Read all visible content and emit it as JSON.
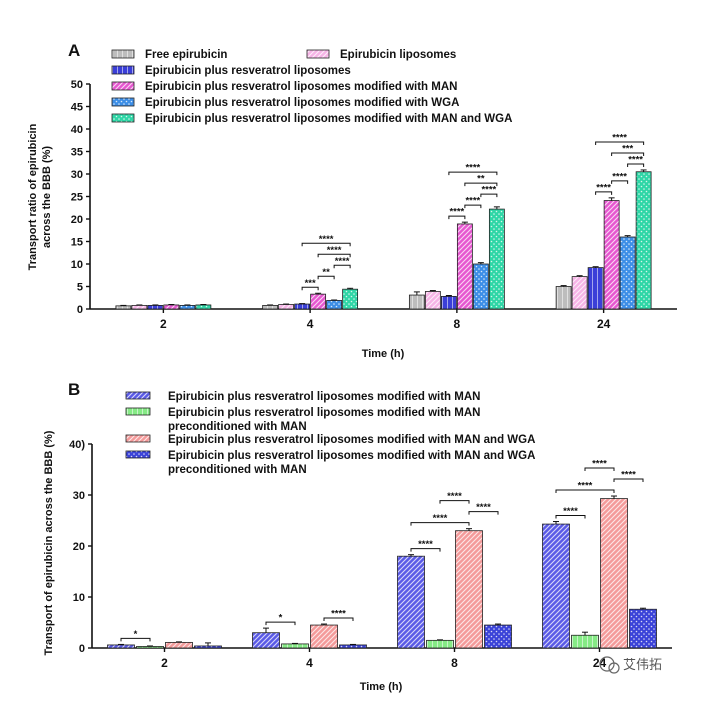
{
  "watermark": "艾伟拓",
  "chart_data": [
    {
      "panel_label": "A",
      "type": "bar",
      "xlabel": "Time (h)",
      "ylabel_lines": [
        "Transport ratio of epirubicin",
        "across the BBB (%)"
      ],
      "ylim": [
        0,
        50
      ],
      "yticks": [
        0,
        5,
        10,
        15,
        20,
        25,
        30,
        35,
        40,
        45,
        50
      ],
      "categories": [
        "2",
        "4",
        "8",
        "24"
      ],
      "series": [
        {
          "name": "Free epirubicin",
          "color": "#bdbdbd",
          "pattern": "vlines",
          "values": [
            0.7,
            0.8,
            3.1,
            5.0
          ],
          "errors": [
            0.1,
            0.1,
            0.7,
            0.2
          ]
        },
        {
          "name": "Epirubicin liposomes",
          "color": "#f6b4e6",
          "pattern": "diag",
          "values": [
            0.8,
            1.0,
            3.9,
            7.2
          ],
          "errors": [
            0.1,
            0.1,
            0.2,
            0.2
          ]
        },
        {
          "name": "Epirubicin plus resveratrol liposomes",
          "color": "#3b3fd8",
          "pattern": "vlines",
          "values": [
            0.8,
            1.1,
            2.8,
            9.2
          ],
          "errors": [
            0.1,
            0.1,
            0.2,
            0.2
          ]
        },
        {
          "name": "Epirubicin plus resveratrol liposomes modified with  MAN",
          "color": "#e657d0",
          "pattern": "diag",
          "values": [
            0.9,
            3.3,
            18.9,
            24.1
          ],
          "errors": [
            0.1,
            0.2,
            0.4,
            0.6
          ]
        },
        {
          "name": "Epirubicin plus resveratrol liposomes modified with  WGA",
          "color": "#3d8ee6",
          "pattern": "dots",
          "values": [
            0.8,
            1.9,
            10.0,
            16.0
          ],
          "errors": [
            0.1,
            0.1,
            0.3,
            0.3
          ]
        },
        {
          "name": "Epirubicin plus resveratrol liposomes modified with  MAN and WGA",
          "color": "#2fd6a6",
          "pattern": "dots",
          "values": [
            0.9,
            4.4,
            22.2,
            30.5
          ],
          "errors": [
            0.1,
            0.2,
            0.5,
            0.4
          ]
        }
      ],
      "significance": [
        {
          "cat": 1,
          "from": 2,
          "to": 3,
          "label": "***"
        },
        {
          "cat": 1,
          "from": 3,
          "to": 4,
          "label": "**"
        },
        {
          "cat": 1,
          "from": 4,
          "to": 5,
          "label": "****"
        },
        {
          "cat": 1,
          "from": 3,
          "to": 5,
          "label": "****"
        },
        {
          "cat": 1,
          "from": 2,
          "to": 5,
          "label": "****"
        },
        {
          "cat": 2,
          "from": 2,
          "to": 3,
          "label": "****"
        },
        {
          "cat": 2,
          "from": 3,
          "to": 4,
          "label": "****"
        },
        {
          "cat": 2,
          "from": 4,
          "to": 5,
          "label": "****"
        },
        {
          "cat": 2,
          "from": 3,
          "to": 5,
          "label": "**"
        },
        {
          "cat": 2,
          "from": 2,
          "to": 5,
          "label": "****"
        },
        {
          "cat": 3,
          "from": 2,
          "to": 3,
          "label": "****"
        },
        {
          "cat": 3,
          "from": 3,
          "to": 4,
          "label": "****"
        },
        {
          "cat": 3,
          "from": 4,
          "to": 5,
          "label": "****"
        },
        {
          "cat": 3,
          "from": 3,
          "to": 5,
          "label": "***"
        },
        {
          "cat": 3,
          "from": 2,
          "to": 5,
          "label": "****"
        }
      ]
    },
    {
      "panel_label": "B",
      "type": "bar",
      "xlabel": "Time (h)",
      "ylabel_lines": [
        "Transport of epirubicin across the BBB (%)"
      ],
      "ylim": [
        0,
        40
      ],
      "yticks": [
        0,
        10,
        20,
        30,
        40
      ],
      "ytick_labels": [
        "0",
        "10",
        "20",
        "30",
        "40)"
      ],
      "categories": [
        "2",
        "4",
        "8",
        "24"
      ],
      "series": [
        {
          "name_lines": [
            "Epirubicin plus resveratrol liposomes modified with  MAN"
          ],
          "color": "#5a5ae6",
          "pattern": "diag",
          "values": [
            0.6,
            3.0,
            18.0,
            24.3
          ],
          "errors": [
            0.1,
            0.9,
            0.3,
            0.5
          ]
        },
        {
          "name_lines": [
            "Epirubicin plus resveratrol liposomes modified with  MAN",
            "preconditioned with MAN"
          ],
          "color": "#86ea86",
          "pattern": "vlines",
          "values": [
            0.3,
            0.8,
            1.5,
            2.5
          ],
          "errors": [
            0.1,
            0.1,
            0.1,
            0.6
          ]
        },
        {
          "name_lines": [
            "Epirubicin plus resveratrol liposomes modified with  MAN and WGA"
          ],
          "color": "#f49a9a",
          "pattern": "diag",
          "values": [
            1.1,
            4.5,
            23.0,
            29.3
          ],
          "errors": [
            0.1,
            0.2,
            0.4,
            0.5
          ]
        },
        {
          "name_lines": [
            "Epirubicin plus resveratrol liposomes modified with  MAN and WGA",
            "preconditioned with MAN"
          ],
          "color": "#3b43d8",
          "pattern": "dots",
          "values": [
            0.4,
            0.6,
            4.5,
            7.6
          ],
          "errors": [
            0.6,
            0.1,
            0.2,
            0.2
          ]
        }
      ],
      "significance": [
        {
          "cat": 0,
          "from": 0,
          "to": 1,
          "label": "*"
        },
        {
          "cat": 1,
          "from": 0,
          "to": 1,
          "label": "*"
        },
        {
          "cat": 1,
          "from": 2,
          "to": 3,
          "label": "****"
        },
        {
          "cat": 2,
          "from": 0,
          "to": 1,
          "label": "****"
        },
        {
          "cat": 2,
          "from": 0,
          "to": 2,
          "label": "****"
        },
        {
          "cat": 2,
          "from": 2,
          "to": 3,
          "label": "****"
        },
        {
          "cat": 2,
          "from": 1,
          "to": 2,
          "label": "****"
        },
        {
          "cat": 3,
          "from": 0,
          "to": 1,
          "label": "****"
        },
        {
          "cat": 3,
          "from": 0,
          "to": 2,
          "label": "****"
        },
        {
          "cat": 3,
          "from": 2,
          "to": 3,
          "label": "****"
        },
        {
          "cat": 3,
          "from": 1,
          "to": 2,
          "label": "****"
        }
      ]
    }
  ]
}
